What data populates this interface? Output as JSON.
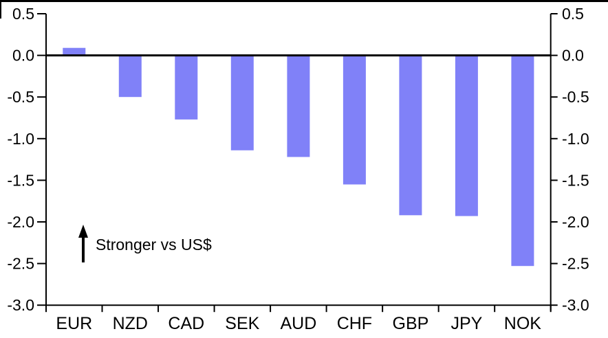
{
  "chart_data": {
    "type": "bar",
    "title": "",
    "xlabel": "",
    "ylabel": "",
    "categories": [
      "EUR",
      "NZD",
      "CAD",
      "SEK",
      "AUD",
      "CHF",
      "GBP",
      "JPY",
      "NOK"
    ],
    "values": [
      0.09,
      -0.5,
      -0.77,
      -1.14,
      -1.22,
      -1.55,
      -1.92,
      -1.93,
      -2.53
    ],
    "ylim": [
      -3.0,
      0.5
    ],
    "yticks": [
      0.5,
      0.0,
      -0.5,
      -1.0,
      -1.5,
      -2.0,
      -2.5,
      -3.0
    ],
    "dual_y_axis": true,
    "grid": false,
    "legend": "none",
    "bar_color": "#8081F8",
    "axis_color": "#000000",
    "annotation": {
      "text": "Stronger vs US$",
      "arrow_direction": "up"
    }
  }
}
